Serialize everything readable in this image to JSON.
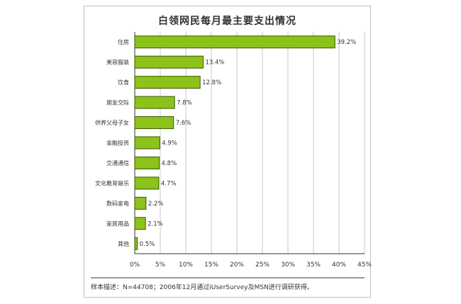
{
  "chart_data": {
    "type": "bar",
    "orientation": "horizontal",
    "title": "白领网民每月最主要支出情况",
    "categories": [
      "住房",
      "美容服装",
      "饮食",
      "朋友交际",
      "供养父母子女",
      "金融投资",
      "交通通信",
      "文化教育娱乐",
      "数码家电",
      "家居用品",
      "其他"
    ],
    "values": [
      39.2,
      13.4,
      12.8,
      7.8,
      7.6,
      4.9,
      4.8,
      4.7,
      2.2,
      2.1,
      0.5
    ],
    "value_labels": [
      "39.2%",
      "13.4%",
      "12.8%",
      "7.8%",
      "7.6%",
      "4.9%",
      "4.8%",
      "4.7%",
      "2.2%",
      "2.1%",
      "0.5%"
    ],
    "xlim": [
      0,
      45
    ],
    "xticks": [
      "0%",
      "5%",
      "10%",
      "15%",
      "20%",
      "25%",
      "30%",
      "35%",
      "40%",
      "45%"
    ],
    "grid": true,
    "bar_color": "#8cc21a",
    "bar_border": "#3a5a00"
  },
  "footnote": "样本描述：N=44708；2006年12月通过iUserSurvey及MSN进行调研获得。"
}
